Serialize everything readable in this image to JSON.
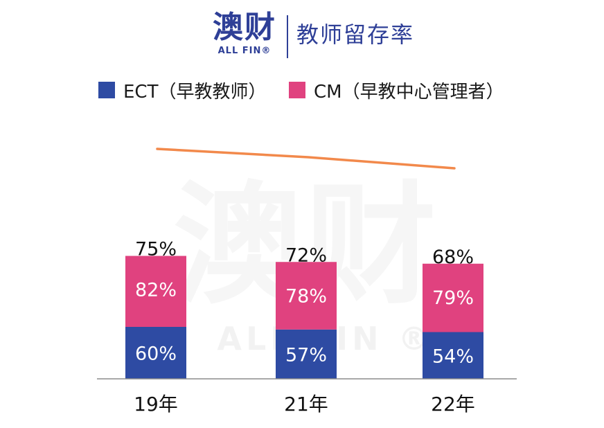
{
  "header": {
    "logo_cn": "澳财",
    "logo_en": "ALL FIN®",
    "title": "教师留存率"
  },
  "watermark": {
    "cn": "澳财",
    "en": "ALL FIN ®"
  },
  "colors": {
    "ect": "#2e4ba3",
    "cm": "#e0427f",
    "line": "#f2894b",
    "brand": "#2e3f97"
  },
  "chart_data": {
    "type": "bar",
    "stacked": true,
    "categories": [
      "19年",
      "21年",
      "22年"
    ],
    "series": [
      {
        "name": "ECT（早教教师）",
        "values": [
          60,
          57,
          54
        ],
        "labels": [
          "60%",
          "57%",
          "54%"
        ]
      },
      {
        "name": "CM（早教中心管理者）",
        "values": [
          82,
          78,
          79
        ],
        "labels": [
          "82%",
          "78%",
          "79%"
        ]
      }
    ],
    "line": {
      "values": [
        75,
        72,
        68
      ],
      "labels": [
        "75%",
        "72%",
        "68%"
      ]
    },
    "legend_position": "top",
    "grid": false
  }
}
